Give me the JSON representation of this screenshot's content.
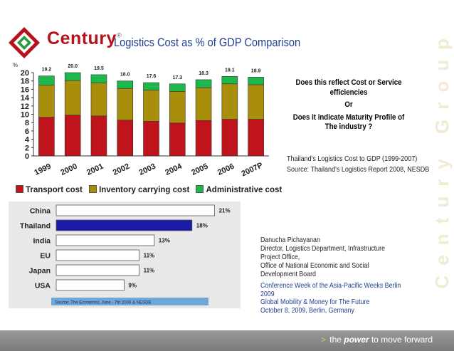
{
  "header": {
    "brand": "Century",
    "trademark": "®",
    "title": "Logistics Cost as % of GDP Comparison",
    "side_word": "Century Group"
  },
  "question": {
    "line1": "Does this reflect Cost or Service efficiencies",
    "or": "Or",
    "line2": "Does it indicate Maturity Profile of The industry ?"
  },
  "caption": {
    "line1": "Thailand's Logistics Cost to GDP  (1999-2007)",
    "line2": "Source: Thailand's Logistics Report 2008, NESDB"
  },
  "chart_data": [
    {
      "type": "bar",
      "stacked": true,
      "ylabel": "%",
      "ylim": [
        0,
        20
      ],
      "yticks": [
        "0",
        "2",
        "4",
        "6",
        "8",
        "10",
        "12",
        "14",
        "16",
        "18",
        "20"
      ],
      "categories": [
        "1999",
        "2000",
        "2001",
        "2002",
        "2003",
        "2004",
        "2005",
        "2006",
        "2007P"
      ],
      "totals": [
        "19.2",
        "20.0",
        "19.5",
        "18.0",
        "17.6",
        "17.3",
        "18.3",
        "19.1",
        "18.9"
      ],
      "series": [
        {
          "name": "Transport cost",
          "color": "#c0141c",
          "values": [
            9.3,
            9.8,
            9.6,
            8.6,
            8.3,
            7.9,
            8.5,
            8.8,
            8.8
          ]
        },
        {
          "name": "Inventory carrying cost",
          "color": "#a88e0a",
          "values": [
            7.7,
            8.3,
            7.9,
            7.6,
            7.5,
            7.6,
            7.9,
            8.5,
            8.3
          ]
        },
        {
          "name": "Administrative cost",
          "color": "#1db84b",
          "values": [
            2.2,
            1.9,
            2.0,
            1.8,
            1.8,
            1.8,
            1.9,
            1.8,
            1.8
          ]
        }
      ],
      "legend": [
        "Transport cost",
        "Inventory carrying cost",
        "Administrative cost"
      ]
    },
    {
      "type": "bar",
      "orientation": "horizontal",
      "categories": [
        "China",
        "Thailand",
        "India",
        "EU",
        "Japan",
        "USA"
      ],
      "values": [
        21,
        18,
        13,
        11,
        11,
        9
      ],
      "labels": [
        "21%",
        "18%",
        "13%",
        "11%",
        "11%",
        "9%"
      ],
      "highlight": "Thailand",
      "source": "Source: The Economist, June - 7th 2006 & NESDB"
    }
  ],
  "presenter": {
    "name": "Danucha  Pichayanan",
    "role": "Director, Logistics Department, Infrastructure Project Office,",
    "org": "Office of National Economic and Social Development Board"
  },
  "conference": {
    "line1": "Conference Week of the Asia-Pacific Weeks Berlin 2009",
    "line2": "Global Mobility & Money for The Future",
    "line3": "October 8, 2009, Berlin, Germany"
  },
  "footer": {
    "tag_pre": "the",
    "tag_bold": "power",
    "tag_post": "to move forward"
  }
}
